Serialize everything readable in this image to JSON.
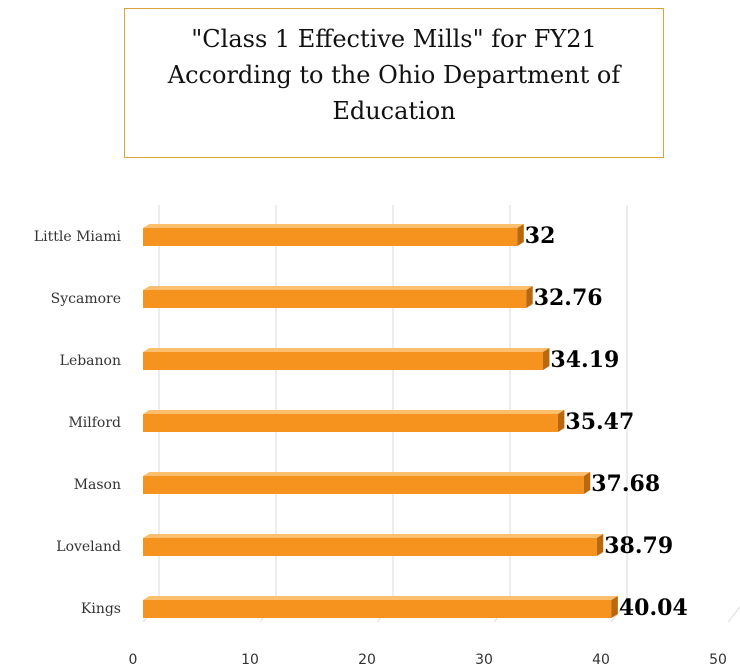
{
  "chart_data": {
    "type": "bar",
    "orientation": "horizontal",
    "title": "\"Class 1 Effective Mills\" for FY21 According to the Ohio Department of Education",
    "categories": [
      "Little Miami",
      "Sycamore",
      "Lebanon",
      "Milford",
      "Mason",
      "Loveland",
      "Kings"
    ],
    "values": [
      32,
      32.76,
      34.19,
      35.47,
      37.68,
      38.79,
      40.04
    ],
    "data_labels": [
      "32",
      "32.76",
      "34.19",
      "35.47",
      "37.68",
      "38.79",
      "40.04"
    ],
    "xlim": [
      0,
      50
    ],
    "x_ticks": [
      "0",
      "10",
      "20",
      "30",
      "40",
      "50"
    ],
    "xlabel": "",
    "ylabel": "",
    "grid": true,
    "legend": "none",
    "colors": {
      "bar_front": "#f6921e",
      "bar_top": "#fbbf6e",
      "bar_side": "#b8680e",
      "grid": "#d9d9d9",
      "title_border": "#d9a43a"
    }
  }
}
